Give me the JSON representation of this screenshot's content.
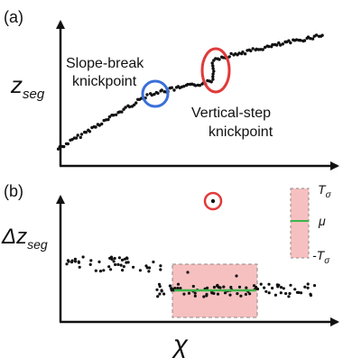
{
  "panel_a": {
    "label": "(a)",
    "ylabel_main": "z",
    "ylabel_sub": "seg",
    "slope_break_line1": "Slope-break",
    "slope_break_line2": "knickpoint",
    "vertical_step_line1": "Vertical-step",
    "vertical_step_line2": "knickpoint",
    "colors": {
      "slope_break_circle": "#3a6fd8",
      "vertical_step_ellipse": "#e03a3a"
    }
  },
  "panel_b": {
    "label": "(b)",
    "ylabel_prefix": "Δz",
    "ylabel_sub": "seg",
    "xlabel": "χ",
    "legend": {
      "upper": "T",
      "upper_sub": "σ",
      "mean": "μ",
      "lower": "-T",
      "lower_sub": "σ"
    },
    "colors": {
      "band_fill": "#f7c0c0",
      "mean_line": "#3bb54a",
      "outlier_circle": "#e03a3a"
    }
  }
}
